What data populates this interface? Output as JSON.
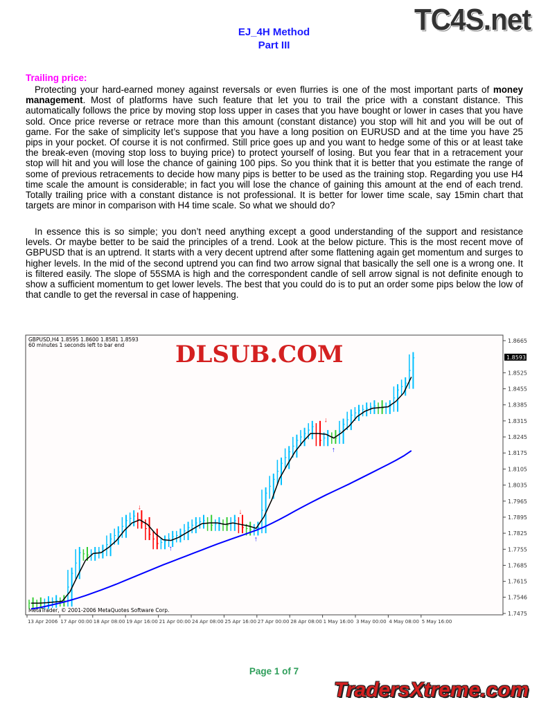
{
  "logos": {
    "top": "TC4S.net",
    "chart": "DLSUB.COM",
    "bottom": "TradersXtreme.com"
  },
  "header": {
    "title": "EJ_4H Method",
    "subtitle": "Part III"
  },
  "section": {
    "heading": "Trailing price:"
  },
  "paragraphs": [
    {
      "before": "Protecting your hard-earned money against reversals or even flurries is one of the most important parts of ",
      "bold": "money management",
      "after": ". Most of platforms have such feature that let you to trail the price with a constant distance. This automatically follows the price by moving stop loss upper in cases that you have bought or lower in cases that you have sold. Once price reverse or retrace more than this amount (constant distance) you stop will hit and you will be out of game. For the sake of simplicity let’s suppose that you have a long position on EURUSD and at the time you have 25 pips in your pocket. Of course it is not confirmed. Still price goes up and you want to hedge some of this or at least take the break-even (moving stop loss to buying price) to protect yourself of losing. But you fear that in a retracement your stop will hit and you will lose the chance of gaining 100 pips. So you think that it is better that you estimate the range of some of previous retracements to decide how many pips is better to be used as the training stop. Regarding you use H4 time scale the amount is considerable; in fact you will lose the chance of gaining this amount at the end of each trend. Totally trailing price with a constant distance is not professional. It is better for lower time scale, say 15min chart that targets are minor in comparison with H4 time scale. So what we should do?"
    },
    {
      "before": "In essence this is so simple; you don’t need anything except a good understanding of the support and resistance levels. Or maybe better to be said the principles of a trend. Look at the below picture. This is the most recent move of GBPUSD that is an uptrend. It starts with a very decent uptrend after some flattening again get momentum and surges to higher levels. In the mid of the second uptrend you can find two arrow signal that basically the sell one is a wrong one. It is filtered easily. The slope of 55SMA is high and the correspondent candle of sell arrow signal is not definite enough to show a sufficient momentum to get lower levels. The best that you could do is to put an order some pips below the low of that candle to get the reversal in case of happening.",
      "bold": "",
      "after": ""
    }
  ],
  "chart_data": {
    "type": "bar",
    "symbol_line": "GBPUSD,H4  1.8595 1.8600 1.8581 1.8593",
    "timer_line": "60 minutes 1 seconds left to bar end",
    "copyright": "MetaTrader, © 2001-2006 MetaQuotes Software Corp.",
    "current_price": "1.8593",
    "ylim": [
      1.7475,
      1.8665
    ],
    "y_ticks": [
      "1.8665",
      "1.8525",
      "1.8455",
      "1.8385",
      "1.8315",
      "1.8245",
      "1.8175",
      "1.8105",
      "1.8035",
      "1.7965",
      "1.7895",
      "1.7825",
      "1.7755",
      "1.7685",
      "1.7615",
      "1.7546",
      "1.7475"
    ],
    "x_ticks": [
      "13 Apr 2006",
      "17 Apr 00:00",
      "18 Apr 08:00",
      "19 Apr 16:00",
      "21 Apr 00:00",
      "24 Apr 08:00",
      "25 Apr 16:00",
      "27 Apr 00:00",
      "28 Apr 08:00",
      "1 May 16:00",
      "3 May 00:00",
      "4 May 08:00",
      "5 May 16:00"
    ],
    "close": [
      1.752,
      1.752,
      1.7525,
      1.753,
      1.753,
      1.765,
      1.774,
      1.773,
      1.774,
      1.775,
      1.78,
      1.783,
      1.788,
      1.79,
      1.787,
      1.782,
      1.778,
      1.779,
      1.781,
      1.782,
      1.785,
      1.787,
      1.788,
      1.786,
      1.787,
      1.786,
      1.788,
      1.785,
      1.784,
      1.785,
      1.8,
      1.806,
      1.813,
      1.818,
      1.823,
      1.826,
      1.829,
      1.823,
      1.825,
      1.824,
      1.83,
      1.834,
      1.836,
      1.837,
      1.838,
      1.837,
      1.838,
      1.845,
      1.848,
      1.859
    ],
    "sma55": [
      1.7495,
      1.75,
      1.7507,
      1.7515,
      1.7523,
      1.7532,
      1.7542,
      1.7553,
      1.7565,
      1.7577,
      1.759,
      1.7603,
      1.7617,
      1.7631,
      1.7645,
      1.7659,
      1.7673,
      1.7687,
      1.77,
      1.7713,
      1.7726,
      1.7739,
      1.7752,
      1.7765,
      1.7778,
      1.779,
      1.7802,
      1.7814,
      1.7826,
      1.7838,
      1.7852,
      1.7868,
      1.7885,
      1.7903,
      1.7922,
      1.794,
      1.7958,
      1.7975,
      1.7992,
      1.8008,
      1.8024,
      1.804,
      1.8057,
      1.8074,
      1.8091,
      1.8108,
      1.8125,
      1.8143,
      1.8162,
      1.8185
    ],
    "sell_arrows": [
      14,
      27,
      38
    ],
    "buy_arrows": [
      18,
      29,
      39
    ],
    "colors": {
      "up": "#00bfff",
      "down": "#ff0000",
      "neutral": "#33cc33",
      "fast_ma": "#000000",
      "sma55": "#0000ff",
      "sell_arrow": "#ff0000",
      "buy_arrow": "#0000ff",
      "background": "#fffcfc"
    }
  },
  "footer": {
    "page": "Page 1 of 7"
  }
}
